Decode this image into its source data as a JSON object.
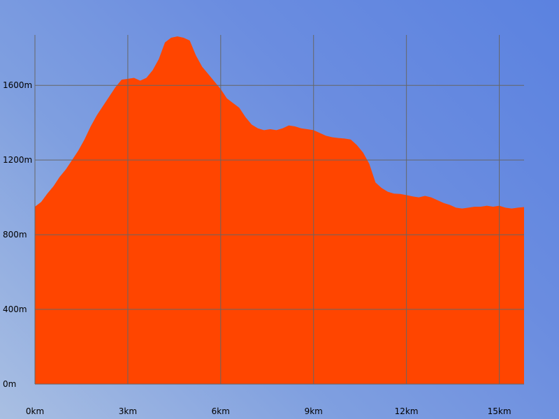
{
  "chart_data": {
    "type": "area",
    "title": "",
    "xlabel": "",
    "ylabel": "",
    "x_unit": "km",
    "y_unit": "m",
    "xlim": [
      0,
      15.8
    ],
    "ylim": [
      0,
      1870
    ],
    "x_ticks": [
      0,
      3,
      6,
      9,
      12,
      15
    ],
    "x_tick_labels": [
      "0km",
      "3km",
      "6km",
      "9km",
      "12km",
      "15km"
    ],
    "y_ticks": [
      0,
      400,
      800,
      1200,
      1600
    ],
    "y_tick_labels": [
      "0m",
      "400m",
      "800m",
      "1200m",
      "1600m"
    ],
    "grid": true,
    "colors": {
      "fill": "#ff4500",
      "grid": "#666666"
    },
    "series": [
      {
        "x": [
          0,
          0.2,
          0.4,
          0.6,
          0.8,
          1.0,
          1.2,
          1.4,
          1.6,
          1.8,
          2.0,
          2.2,
          2.4,
          2.6,
          2.8,
          3.0,
          3.2,
          3.4,
          3.6,
          3.8,
          4.0,
          4.2,
          4.4,
          4.6,
          4.8,
          5.0,
          5.2,
          5.4,
          5.6,
          5.8,
          6.0,
          6.2,
          6.4,
          6.6,
          6.8,
          7.0,
          7.2,
          7.4,
          7.6,
          7.8,
          8.0,
          8.2,
          8.4,
          8.6,
          8.8,
          9.0,
          9.2,
          9.4,
          9.6,
          9.8,
          10.0,
          10.2,
          10.4,
          10.6,
          10.8,
          11.0,
          11.2,
          11.4,
          11.6,
          11.8,
          12.0,
          12.2,
          12.4,
          12.6,
          12.8,
          13.0,
          13.2,
          13.4,
          13.6,
          13.8,
          14.0,
          14.2,
          14.4,
          14.6,
          14.8,
          15.0,
          15.2,
          15.4,
          15.6,
          15.8
        ],
        "y": [
          950,
          975,
          1020,
          1060,
          1110,
          1150,
          1200,
          1250,
          1310,
          1380,
          1440,
          1490,
          1540,
          1590,
          1630,
          1635,
          1640,
          1625,
          1640,
          1680,
          1740,
          1830,
          1855,
          1862,
          1855,
          1840,
          1760,
          1700,
          1660,
          1620,
          1580,
          1530,
          1505,
          1480,
          1430,
          1390,
          1370,
          1360,
          1365,
          1360,
          1370,
          1385,
          1380,
          1370,
          1365,
          1360,
          1345,
          1330,
          1322,
          1318,
          1315,
          1310,
          1280,
          1240,
          1180,
          1080,
          1050,
          1030,
          1020,
          1018,
          1012,
          1005,
          1000,
          1008,
          1000,
          985,
          970,
          960,
          945,
          940,
          945,
          950,
          950,
          955,
          950,
          955,
          945,
          940,
          945,
          948
        ]
      }
    ]
  }
}
